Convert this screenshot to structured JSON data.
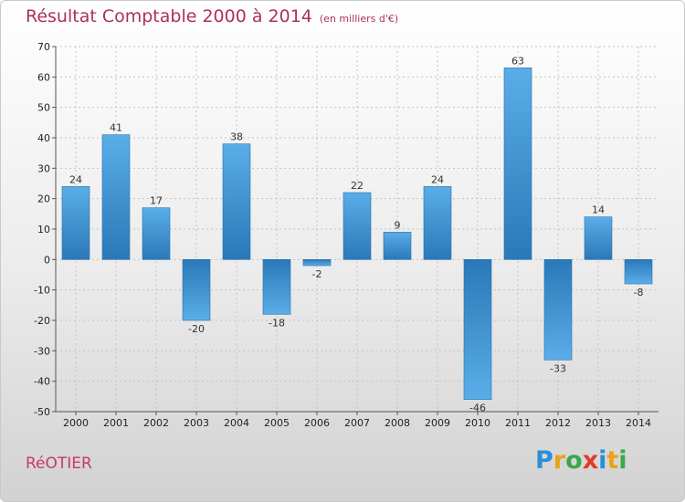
{
  "chart_data": {
    "type": "bar",
    "title": "Résultat Comptable 2000 à 2014",
    "subtitle": "(en milliers d'€)",
    "categories": [
      "2000",
      "2001",
      "2002",
      "2003",
      "2004",
      "2005",
      "2006",
      "2007",
      "2008",
      "2009",
      "2010",
      "2011",
      "2012",
      "2013",
      "2014"
    ],
    "values": [
      24,
      41,
      17,
      -20,
      38,
      -18,
      -2,
      22,
      9,
      24,
      -46,
      63,
      -33,
      14,
      -8
    ],
    "ylim": [
      -50,
      70
    ],
    "yticks": [
      70,
      60,
      50,
      40,
      30,
      20,
      10,
      0,
      -10,
      -20,
      -30,
      -40,
      -50
    ],
    "grid": true,
    "colors": {
      "bar_light": "#5aaee8",
      "bar_dark": "#2a78b8"
    }
  },
  "footer": {
    "commune": "RéOTIER",
    "logo_letters": [
      "P",
      "r",
      "o",
      "x",
      "i",
      "t",
      "i"
    ],
    "logo_colors": [
      "#2a8fd6",
      "#e8a21a",
      "#3aa84a",
      "#e43a2a",
      "#2a8fd6",
      "#e8a21a",
      "#3aa84a"
    ]
  }
}
